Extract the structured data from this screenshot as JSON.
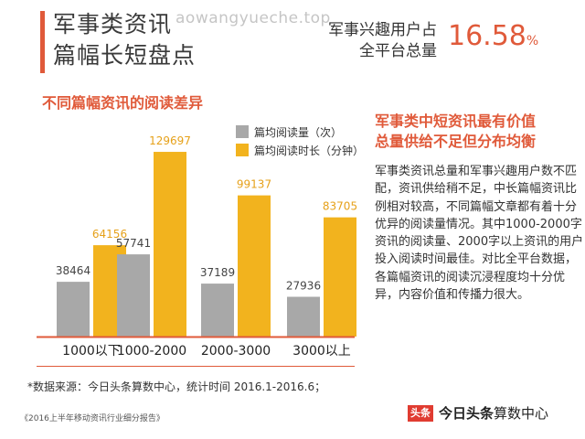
{
  "header": {
    "title_line1": "军事类资讯",
    "title_line2": "篇幅长短盘点",
    "watermark": "aowangyueche.top",
    "stat_label_line1": "军事兴趣用户占",
    "stat_label_line2": "全平台总量",
    "stat_value": "16.58",
    "stat_unit": "%"
  },
  "chart_section_title": "不同篇幅资讯的阅读差异",
  "chart_data": {
    "type": "bar",
    "categories": [
      "1000以下",
      "1000-2000",
      "2000-3000",
      "3000以上"
    ],
    "series": [
      {
        "name": "篇均阅读量（次）",
        "values": [
          38464,
          57741,
          37189,
          27936
        ],
        "color": "#a8a8a8"
      },
      {
        "name": "篇均阅读时长（分钟）",
        "values": [
          64156,
          129697,
          99137,
          83705
        ],
        "color": "#f2b31e"
      }
    ],
    "ylim": [
      0,
      140000
    ],
    "grid": false,
    "legend_position": "top-right"
  },
  "right_panel": {
    "title_line1": "军事类中短资讯最有价值",
    "title_line2": "总量供给不足但分布均衡",
    "body": "军事类资讯总量和军事兴趣用户数不匹配，资讯供给稍不足，中长篇幅资讯比例相对较高，不同篇幅文章都有着十分优异的阅读量情况。其中1000-2000字资讯的阅读量、2000字以上资讯的用户投入阅读时间最佳。对比全平台数据，各篇幅资讯的阅读沉浸程度均十分优异，内容价值和传播力很大。"
  },
  "footer": {
    "source_note": "*数据来源：今日头条算数中心，统计时间 2016.1-2016.6；",
    "report_note": "《2016上半年移动资讯行业细分报告》",
    "logo_badge": "头条",
    "logo_main": "今日头条",
    "logo_sub": "算数中心"
  },
  "colors": {
    "accent": "#e05a3a",
    "bar_reads": "#a8a8a8",
    "bar_time": "#f2b31e"
  }
}
